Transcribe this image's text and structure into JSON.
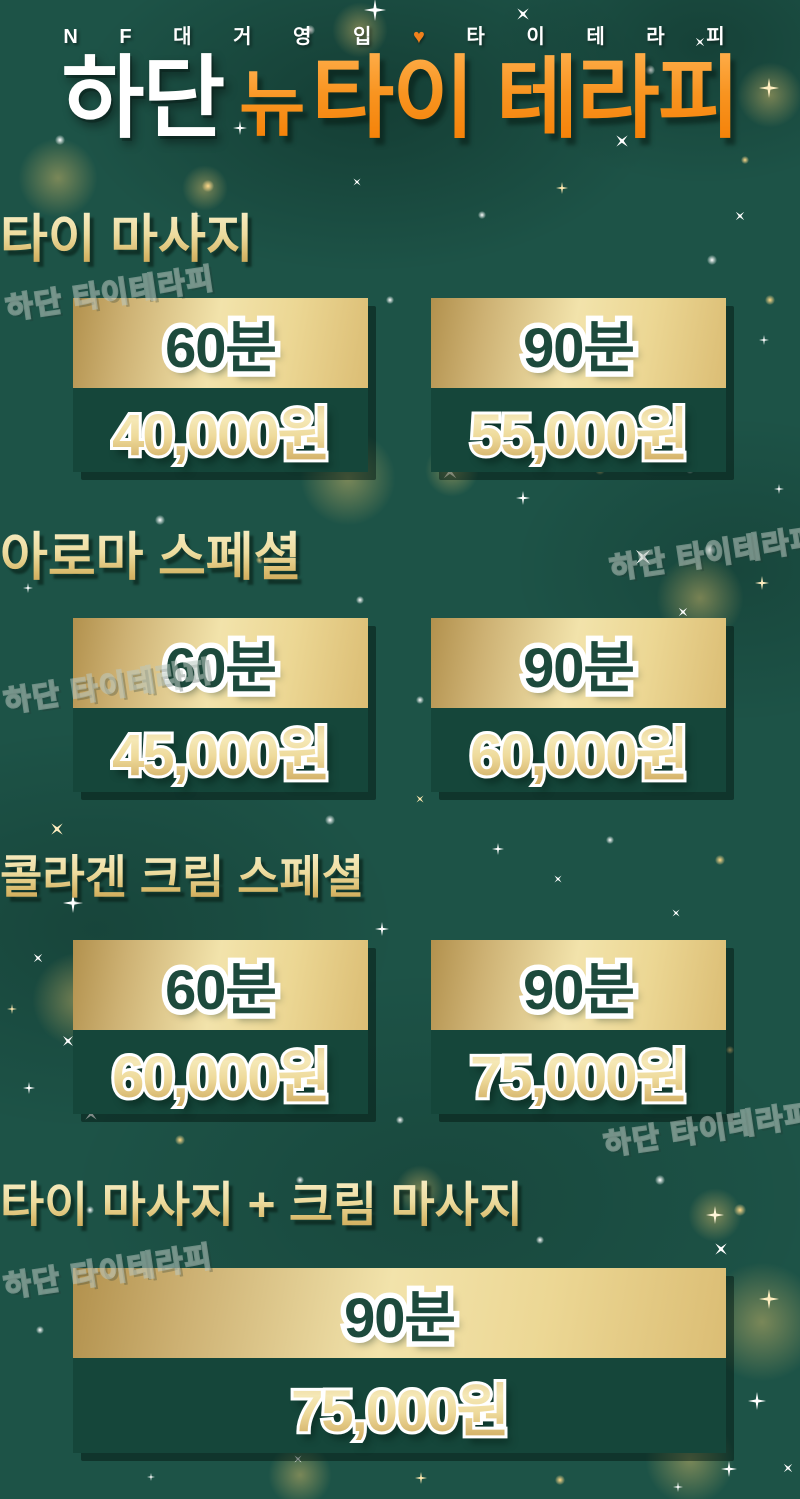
{
  "poster": {
    "tagline_left": "N F 대 거 영 입",
    "tagline_heart": "♥",
    "tagline_right": "타 이 테 라 피",
    "title_white": "하단",
    "title_new": "뉴",
    "title_orange": "타이 테라피",
    "watermark": "하단 타이테라피",
    "colors": {
      "background": "#1d5347",
      "price_panel": "#15463a",
      "gold_light": "#f2e3ab",
      "gold_deep": "#c79e4e",
      "orange": "#f89420",
      "duration_green": "#1d4a3c",
      "white": "#ffffff"
    },
    "sections": [
      {
        "title": "타이 마사지",
        "cards": [
          {
            "duration": "60분",
            "price": "40,000원"
          },
          {
            "duration": "90분",
            "price": "55,000원"
          }
        ]
      },
      {
        "title": "아로마 스페셜",
        "cards": [
          {
            "duration": "60분",
            "price": "45,000원"
          },
          {
            "duration": "90분",
            "price": "60,000원"
          }
        ]
      },
      {
        "title": "콜라겐 크림 스페셜",
        "cards": [
          {
            "duration": "60분",
            "price": "60,000원"
          },
          {
            "duration": "90분",
            "price": "75,000원"
          }
        ]
      },
      {
        "title": "타이 마사지 + 크림 마사지",
        "cards": [
          {
            "duration": "90분",
            "price": "75,000원"
          }
        ]
      }
    ]
  }
}
